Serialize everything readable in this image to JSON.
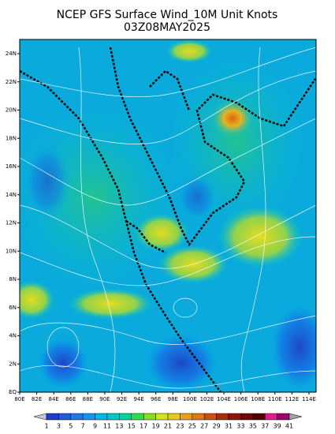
{
  "header": {
    "title": "NCEP GFS Surface Wind_10M Unit Knots",
    "subtitle": "03Z08MAY2025"
  },
  "map": {
    "x_labels": [
      "80E",
      "82E",
      "84E",
      "86E",
      "88E",
      "90E",
      "92E",
      "94E",
      "96E",
      "98E",
      "100E",
      "102E",
      "104E",
      "106E",
      "108E",
      "110E",
      "112E",
      "114E"
    ],
    "y_labels": [
      "EQ",
      "2N",
      "4N",
      "6N",
      "8N",
      "10N",
      "12N",
      "14N",
      "16N",
      "18N",
      "20N",
      "22N",
      "24N"
    ]
  },
  "colorbar": {
    "levels": [
      1,
      3,
      5,
      7,
      9,
      11,
      13,
      15,
      17,
      19,
      21,
      23,
      25,
      27,
      29,
      31,
      33,
      35,
      37,
      39,
      41
    ],
    "colors": [
      "#c8c8dc",
      "#1e3cc8",
      "#1e5adc",
      "#1e78e6",
      "#1496f0",
      "#00b4e6",
      "#00c8c8",
      "#00d29b",
      "#32dc50",
      "#8cdc1e",
      "#d2e61e",
      "#e6c81e",
      "#e6a01e",
      "#dc7814",
      "#c85014",
      "#aa2d0a",
      "#8c140a",
      "#6e0a0a",
      "#500000",
      "#dc1e8c",
      "#a0006e",
      "#a0a0a0"
    ]
  }
}
